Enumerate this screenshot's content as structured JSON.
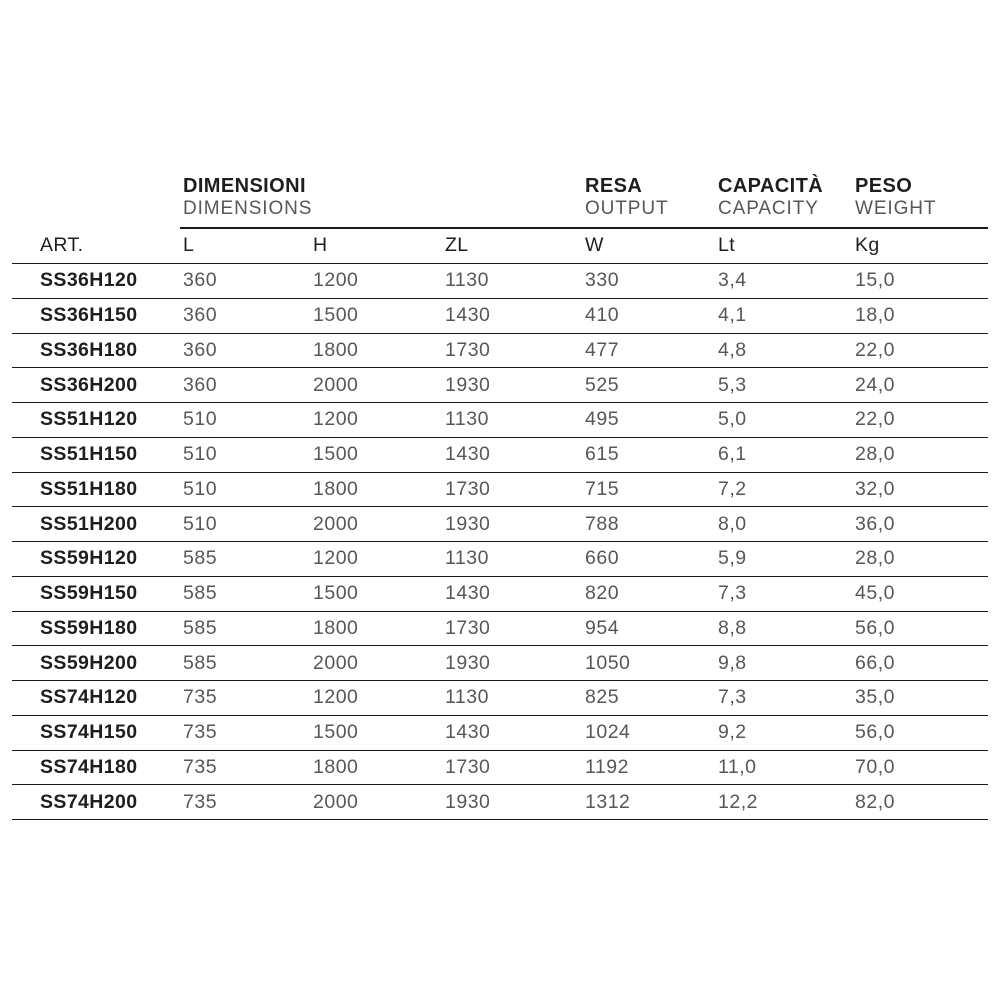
{
  "table": {
    "column_groups": [
      {
        "title": "DIMENSIONI",
        "subtitle": "DIMENSIONS"
      },
      {
        "title": "RESA",
        "subtitle": "OUTPUT"
      },
      {
        "title": "CAPACITÀ",
        "subtitle": "CAPACITY"
      },
      {
        "title": "PESO",
        "subtitle": "WEIGHT"
      }
    ],
    "columns": [
      "ART.",
      "L",
      "H",
      "ZL",
      "W",
      "Lt",
      "Kg"
    ],
    "rows": [
      [
        "SS36H120",
        "360",
        "1200",
        "1130",
        "330",
        "3,4",
        "15,0"
      ],
      [
        "SS36H150",
        "360",
        "1500",
        "1430",
        "410",
        "4,1",
        "18,0"
      ],
      [
        "SS36H180",
        "360",
        "1800",
        "1730",
        "477",
        "4,8",
        "22,0"
      ],
      [
        "SS36H200",
        "360",
        "2000",
        "1930",
        "525",
        "5,3",
        "24,0"
      ],
      [
        "SS51H120",
        "510",
        "1200",
        "1130",
        "495",
        "5,0",
        "22,0"
      ],
      [
        "SS51H150",
        "510",
        "1500",
        "1430",
        "615",
        "6,1",
        "28,0"
      ],
      [
        "SS51H180",
        "510",
        "1800",
        "1730",
        "715",
        "7,2",
        "32,0"
      ],
      [
        "SS51H200",
        "510",
        "2000",
        "1930",
        "788",
        "8,0",
        "36,0"
      ],
      [
        "SS59H120",
        "585",
        "1200",
        "1130",
        "660",
        "5,9",
        "28,0"
      ],
      [
        "SS59H150",
        "585",
        "1500",
        "1430",
        "820",
        "7,3",
        "45,0"
      ],
      [
        "SS59H180",
        "585",
        "1800",
        "1730",
        "954",
        "8,8",
        "56,0"
      ],
      [
        "SS59H200",
        "585",
        "2000",
        "1930",
        "1050",
        "9,8",
        "66,0"
      ],
      [
        "SS74H120",
        "735",
        "1200",
        "1130",
        "825",
        "7,3",
        "35,0"
      ],
      [
        "SS74H150",
        "735",
        "1500",
        "1430",
        "1024",
        "9,2",
        "56,0"
      ],
      [
        "SS74H180",
        "735",
        "1800",
        "1730",
        "1192",
        "11,0",
        "70,0"
      ],
      [
        "SS74H200",
        "735",
        "2000",
        "1930",
        "1312",
        "12,2",
        "82,0"
      ]
    ]
  },
  "colors": {
    "text_dark": "#1d1e20",
    "text_gray": "#56575b",
    "rule_line": "#1a1a1c",
    "background": "#ffffff"
  }
}
